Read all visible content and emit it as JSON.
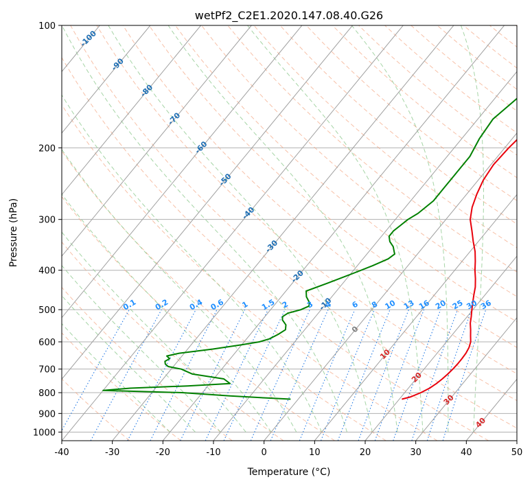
{
  "chart_data": {
    "type": "line",
    "title": "wetPf2_C2E1.2020.147.08.40.G26",
    "xlabel": "Temperature (°C)",
    "ylabel": "Pressure (hPa)",
    "xlim": [
      -40,
      50
    ],
    "ylim": [
      1050,
      100
    ],
    "y_scale": "log",
    "grid": true,
    "x_ticks": [
      "-40",
      "-30",
      "-20",
      "-10",
      "0",
      "10",
      "20",
      "30",
      "40",
      "50"
    ],
    "y_ticks": [
      "100",
      "200",
      "300",
      "400",
      "500",
      "600",
      "700",
      "800",
      "900",
      "1000"
    ],
    "series": [
      {
        "color": "#e8000b",
        "pressure": [
          830,
          820,
          800,
          780,
          760,
          740,
          720,
          700,
          680,
          660,
          640,
          620,
          600,
          580,
          560,
          540,
          520,
          500,
          480,
          460,
          440,
          420,
          400,
          380,
          360,
          340,
          320,
          300,
          280,
          260,
          240,
          220,
          200,
          180,
          160,
          150,
          140,
          130,
          120,
          110,
          100
        ],
        "temperature": [
          20.5,
          21.8,
          23.2,
          24.2,
          24.8,
          25.2,
          25.5,
          25.7,
          25.8,
          25.8,
          25.7,
          25.4,
          24.8,
          23.8,
          22.8,
          21.7,
          20.8,
          19.8,
          18.8,
          17.8,
          16.8,
          15.5,
          14,
          12.6,
          11,
          9,
          7,
          4.8,
          3.2,
          2,
          1,
          0.5,
          0.8,
          1.5,
          2,
          2.5,
          4,
          6,
          7.5,
          8.5,
          9.5
        ]
      },
      {
        "color": "#008000",
        "pressure": [
          830,
          825,
          815,
          800,
          795,
          790,
          780,
          770,
          760,
          740,
          720,
          700,
          690,
          680,
          670,
          660,
          650,
          640,
          625,
          610,
          600,
          590,
          575,
          560,
          545,
          530,
          520,
          510,
          500,
          490,
          480,
          465,
          450,
          430,
          410,
          390,
          375,
          365,
          360,
          350,
          340,
          330,
          320,
          310,
          300,
          290,
          270,
          250,
          230,
          210,
          190,
          170,
          150,
          140,
          130,
          120,
          110,
          105,
          100
        ],
        "temperature": [
          -1.5,
          -6,
          -14,
          -24,
          -32,
          -40,
          -35,
          -24,
          -16,
          -18,
          -25,
          -28,
          -31,
          -32,
          -32.5,
          -32,
          -33,
          -31,
          -25,
          -20,
          -17,
          -15.5,
          -14.5,
          -13.8,
          -14.5,
          -16,
          -16.5,
          -16,
          -14,
          -13,
          -13.5,
          -15,
          -16,
          -13,
          -10,
          -7,
          -5,
          -4.5,
          -5,
          -6,
          -7.5,
          -8.5,
          -8.5,
          -8,
          -7.5,
          -6.5,
          -5.5,
          -5.5,
          -5.5,
          -5.5,
          -6.5,
          -7,
          -5.5,
          -4.5,
          -4,
          -4,
          -3.5,
          -2.5,
          -1
        ]
      }
    ],
    "isotherm_labels": [
      "-100",
      "-90",
      "-80",
      "-70",
      "-60",
      "-50",
      "-40",
      "-30",
      "-20",
      "-10",
      "0",
      "10",
      "20",
      "30",
      "40"
    ],
    "mixing_ratio_labels": [
      "0.1",
      "0.2",
      "0.4",
      "0.6",
      "1",
      "1.5",
      "2",
      "3",
      "4",
      "6",
      "8",
      "10",
      "13",
      "16",
      "20",
      "25",
      "30",
      "36"
    ],
    "colors": {
      "temperature_line": "#e8000b",
      "dewpoint_line": "#008000",
      "isotherm": "#a0a0a0",
      "dry_adiabat": "#f4a582",
      "moist_adiabat": "#8fc98f",
      "mixing_ratio": "#1f77e4",
      "iso_label_cold": "#1f6fb4",
      "iso_label_zero": "#808080",
      "iso_label_warm": "#d62728",
      "mixing_label": "#1f8fff"
    }
  }
}
